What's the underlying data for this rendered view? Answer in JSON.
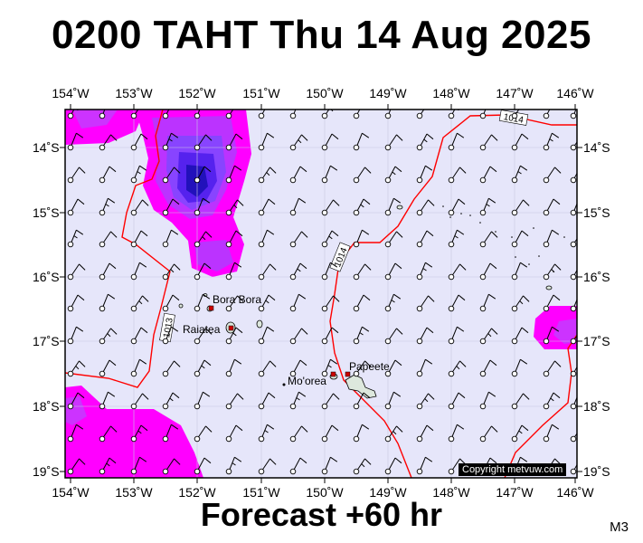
{
  "title": "0200 TAHT Thu 14 Aug 2025",
  "footer": "Forecast +60 hr",
  "model": "M3",
  "copyright": "Copyright metvuw.com",
  "lon_labels": [
    "154˚W",
    "153˚W",
    "152˚W",
    "151˚W",
    "150˚W",
    "149˚W",
    "148˚W",
    "147˚W",
    "146˚W"
  ],
  "lat_labels": [
    "14˚S",
    "15˚S",
    "16˚S",
    "17˚S",
    "18˚S",
    "19˚S"
  ],
  "isobar_labels": [
    "1014",
    "1014",
    "1013"
  ],
  "places": [
    "Bora Bora",
    "Raiatea",
    "Mo'orea",
    "Papeete"
  ],
  "colors": {
    "background": "#e6e6fa",
    "rain_light": "#ff00ff",
    "rain_mid": "#aa44ff",
    "rain_heavy": "#3311cc",
    "isobar": "#ff0000",
    "town": "#cc0000"
  }
}
